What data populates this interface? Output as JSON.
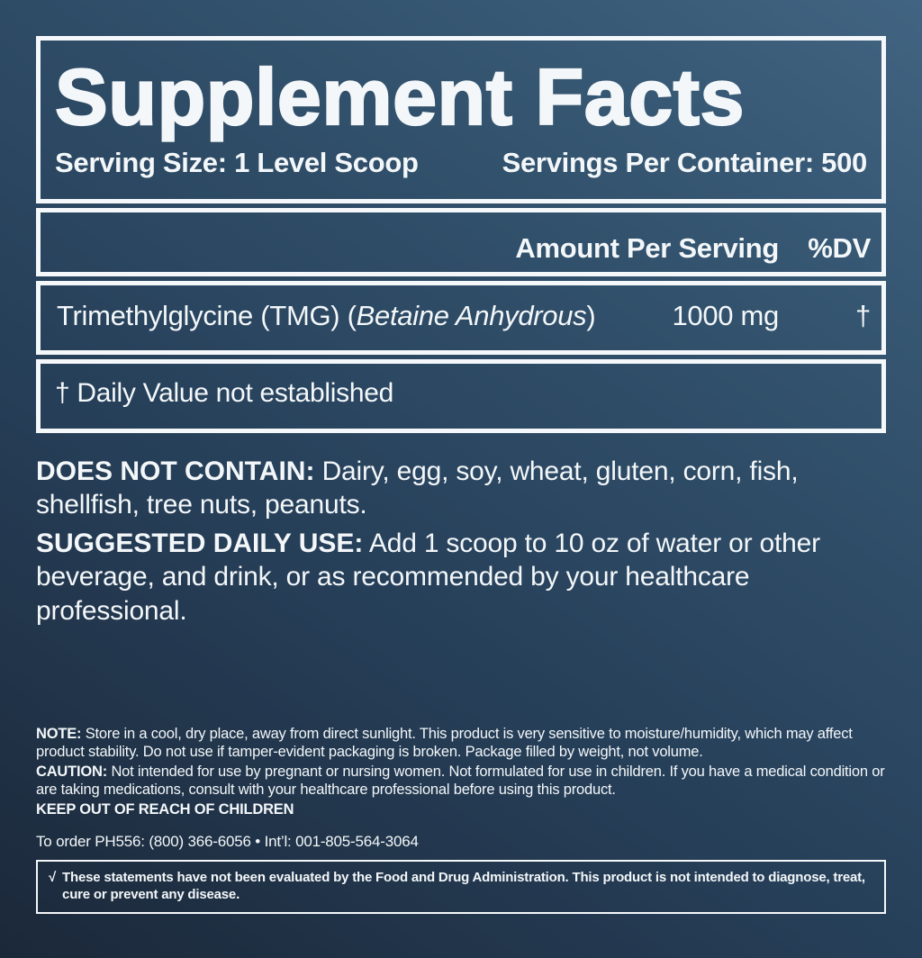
{
  "panel": {
    "title": "Supplement Facts",
    "serving_size": "Serving Size: 1 Level Scoop",
    "servings_per_container": "Servings Per Container: 500",
    "amount_header": "Amount Per Serving",
    "dv_header": "%DV",
    "rows": [
      {
        "name_prefix": "Trimethylglycine (TMG) (",
        "name_italic": "Betaine Anhydrous",
        "name_suffix": ")",
        "amount": "1000 mg",
        "dv": "†"
      }
    ],
    "footnote": "† Daily Value not established"
  },
  "sections": {
    "does_not_contain_label": "DOES NOT CONTAIN:",
    "does_not_contain_text": " Dairy, egg, soy, wheat, gluten, corn, fish, shellfish, tree nuts, peanuts.",
    "suggested_use_label": "SUGGESTED DAILY USE:",
    "suggested_use_text": " Add 1 scoop to 10 oz of water or other beverage, and drink, or as recommended by your healthcare professional."
  },
  "fine_print": {
    "note_label": "NOTE:",
    "note_text": " Store in a cool, dry place, away from direct sunlight. This product is very sensitive to moisture/humidity, which may affect product stability. Do not use if tamper-evident packaging is broken. Package filled by weight, not volume.",
    "caution_label": "CAUTION:",
    "caution_text": " Not intended for use by pregnant or nursing women. Not formulated for use in children. If you have a medical condition or are taking medications, consult with your healthcare professional before using this product.",
    "keep_out": "KEEP OUT OF REACH OF CHILDREN",
    "order_info": "To order PH556: (800) 366-6056 • Int’l: 001-805-564-3064",
    "disclaimer_mark": "√",
    "disclaimer": "These statements have not been evaluated by the Food and Drug Administration. This product is not intended to diagnose, treat, cure or prevent any disease."
  },
  "colors": {
    "background_light": "#416482",
    "background_dark": "#1b2839",
    "text": "#f3f7f9",
    "border": "#f5f8fa"
  }
}
